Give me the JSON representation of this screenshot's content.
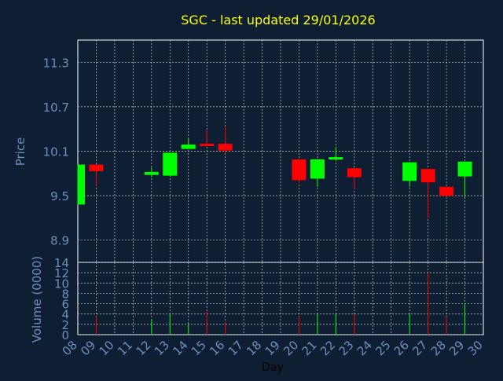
{
  "chart_data": [
    {
      "type": "candlestick",
      "title": "SGC - last updated 29/01/2026",
      "ylabel": "Price",
      "ylim": [
        8.6,
        11.6
      ],
      "yticks": [
        "11.3",
        "10.7",
        "10.1",
        "9.5",
        "8.9"
      ],
      "grid": true,
      "up_color": "#00ff00",
      "down_color": "#ff0000",
      "candles": [
        {
          "day": "08",
          "open": 9.38,
          "high": 9.92,
          "low": 9.38,
          "close": 9.92
        },
        {
          "day": "09",
          "open": 9.92,
          "high": 9.92,
          "low": 9.63,
          "close": 9.83
        },
        {
          "day": "12",
          "open": 9.78,
          "high": 9.88,
          "low": 9.75,
          "close": 9.82
        },
        {
          "day": "13",
          "open": 9.77,
          "high": 10.08,
          "low": 9.77,
          "close": 10.08
        },
        {
          "day": "14",
          "open": 10.13,
          "high": 10.27,
          "low": 10.13,
          "close": 10.19
        },
        {
          "day": "15",
          "open": 10.2,
          "high": 10.38,
          "low": 10.17,
          "close": 10.17
        },
        {
          "day": "16",
          "open": 10.2,
          "high": 10.43,
          "low": 10.07,
          "close": 10.11
        },
        {
          "day": "20",
          "open": 9.99,
          "high": 9.99,
          "low": 9.67,
          "close": 9.71
        },
        {
          "day": "21",
          "open": 9.73,
          "high": 10.0,
          "low": 9.62,
          "close": 9.99
        },
        {
          "day": "22",
          "open": 10.0,
          "high": 10.16,
          "low": 9.97,
          "close": 10.02
        },
        {
          "day": "23",
          "open": 9.87,
          "high": 9.87,
          "low": 9.59,
          "close": 9.75
        },
        {
          "day": "26",
          "open": 9.7,
          "high": 9.95,
          "low": 9.62,
          "close": 9.95
        },
        {
          "day": "27",
          "open": 9.86,
          "high": 9.86,
          "low": 9.2,
          "close": 9.68
        },
        {
          "day": "28",
          "open": 9.62,
          "high": 9.62,
          "low": 9.47,
          "close": 9.5
        },
        {
          "day": "29",
          "open": 9.76,
          "high": 9.96,
          "low": 9.48,
          "close": 9.96
        }
      ]
    },
    {
      "type": "bar",
      "xlabel": "Day",
      "ylabel": "Volume (0000)",
      "ylim": [
        0,
        14
      ],
      "yticks": [
        "0",
        "2",
        "4",
        "6",
        "8",
        "10",
        "12",
        "14"
      ],
      "grid": true,
      "categories": [
        "08",
        "09",
        "10",
        "11",
        "12",
        "13",
        "14",
        "15",
        "16",
        "17",
        "18",
        "19",
        "20",
        "21",
        "22",
        "23",
        "24",
        "25",
        "26",
        "27",
        "28",
        "29",
        "30"
      ],
      "bars": [
        {
          "day": "09",
          "value": 3.5,
          "color": "#ff0000"
        },
        {
          "day": "12",
          "value": 3.0,
          "color": "#00ff00"
        },
        {
          "day": "13",
          "value": 4.0,
          "color": "#00ff00"
        },
        {
          "day": "14",
          "value": 2.0,
          "color": "#00ff00"
        },
        {
          "day": "15",
          "value": 4.5,
          "color": "#ff0000"
        },
        {
          "day": "16",
          "value": 2.5,
          "color": "#ff0000"
        },
        {
          "day": "20",
          "value": 3.5,
          "color": "#ff0000"
        },
        {
          "day": "21",
          "value": 4.0,
          "color": "#00ff00"
        },
        {
          "day": "22",
          "value": 4.0,
          "color": "#00ff00"
        },
        {
          "day": "23",
          "value": 4.0,
          "color": "#ff0000"
        },
        {
          "day": "26",
          "value": 4.0,
          "color": "#00ff00"
        },
        {
          "day": "27",
          "value": 12.0,
          "color": "#ff0000"
        },
        {
          "day": "28",
          "value": 3.5,
          "color": "#ff0000"
        },
        {
          "day": "29",
          "value": 6.0,
          "color": "#00ff00"
        }
      ]
    }
  ]
}
